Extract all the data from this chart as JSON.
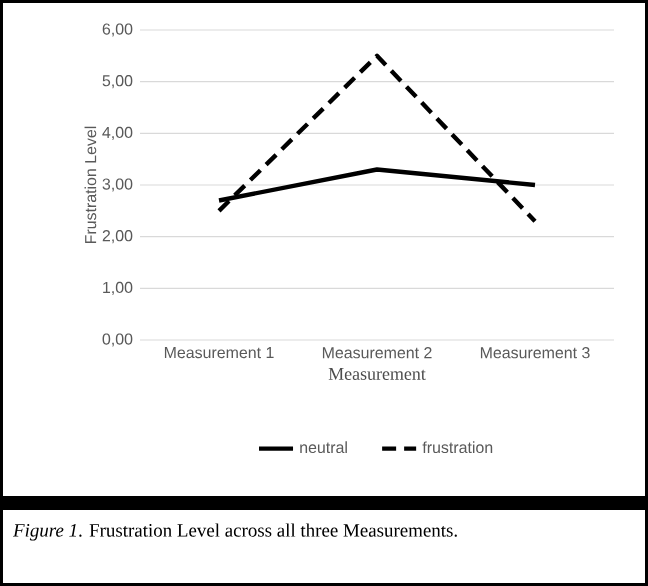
{
  "chart_data": {
    "type": "line",
    "ylabel": "Frustration Level",
    "xlabel": "Measurement",
    "categories": [
      "Measurement 1",
      "Measurement 2",
      "Measurement 3"
    ],
    "series": [
      {
        "name": "neutral",
        "color": "#000000",
        "line_style": "solid",
        "values": [
          2.7,
          3.3,
          3.0
        ]
      },
      {
        "name": "frustration",
        "color": "#000000",
        "line_style": "dashed",
        "values": [
          2.5,
          5.5,
          2.3
        ]
      }
    ],
    "ylim": [
      0,
      6
    ],
    "yticks": [
      {
        "value": 0,
        "label": "0,00"
      },
      {
        "value": 1,
        "label": "1,00"
      },
      {
        "value": 2,
        "label": "2,00"
      },
      {
        "value": 3,
        "label": "3,00"
      },
      {
        "value": 4,
        "label": "4,00"
      },
      {
        "value": 5,
        "label": "5,00"
      },
      {
        "value": 6,
        "label": "6,00"
      }
    ],
    "grid": "y",
    "legend": "bottom",
    "marker": "none",
    "annotations": [
      "*Figure 1*. Frustration Level across all three Measurements."
    ]
  }
}
